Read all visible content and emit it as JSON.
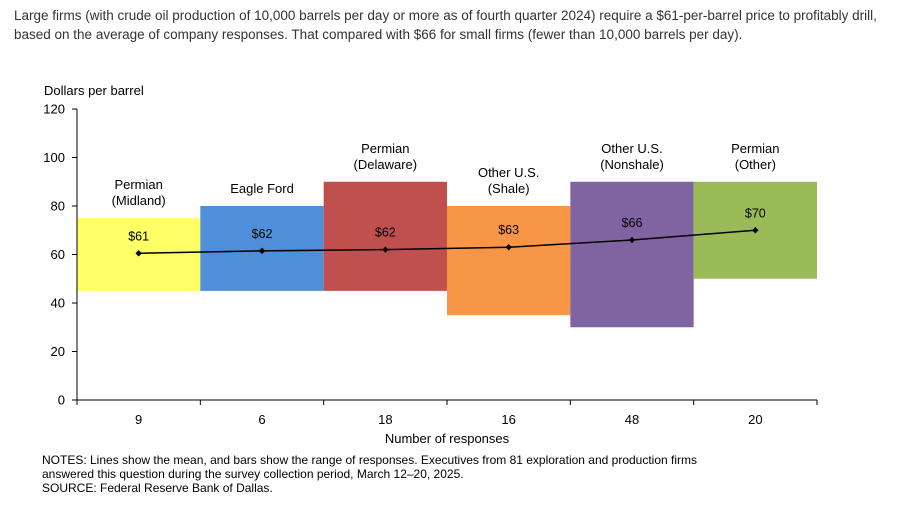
{
  "caption": "Large firms (with crude oil production of 10,000 barrels per day or more as of fourth quarter 2024) require a $61-per-barrel price to profitably drill, based on the average of company responses. That compared with $66 for small firms (fewer than 10,000 barrels per day).",
  "chart_data": {
    "type": "bar",
    "subtype": "floating-range-with-mean-line",
    "ylabel": "Dollars  per barrel",
    "xlabel": "Number  of responses",
    "ylim": [
      0,
      120
    ],
    "yticks": [
      0,
      20,
      40,
      60,
      80,
      100,
      120
    ],
    "grid": false,
    "categories": [
      {
        "name_lines": [
          "Permian",
          "(Midland)"
        ],
        "responses": "9",
        "low": 45,
        "high": 75,
        "mean": 60.5,
        "mean_label": "$61",
        "color": "#FFFF66"
      },
      {
        "name_lines": [
          "Eagle Ford"
        ],
        "responses": "6",
        "low": 45,
        "high": 80,
        "mean": 61.5,
        "mean_label": "$62",
        "color": "#4F8ED8"
      },
      {
        "name_lines": [
          "Permian",
          "(Delaware)"
        ],
        "responses": "18",
        "low": 45,
        "high": 90,
        "mean": 62,
        "mean_label": "$62",
        "color": "#C0504D"
      },
      {
        "name_lines": [
          "Other U.S.",
          "(Shale)"
        ],
        "responses": "16",
        "low": 35,
        "high": 80,
        "mean": 63,
        "mean_label": "$63",
        "color": "#F79646"
      },
      {
        "name_lines": [
          "Other U.S.",
          "(Nonshale)"
        ],
        "responses": "48",
        "low": 30,
        "high": 90,
        "mean": 66,
        "mean_label": "$66",
        "color": "#8064A2"
      },
      {
        "name_lines": [
          "Permian",
          "(Other)"
        ],
        "responses": "20",
        "low": 50,
        "high": 90,
        "mean": 70,
        "mean_label": "$70",
        "color": "#9BBB59"
      }
    ]
  },
  "notes": {
    "line1": "NOTES:  Lines show the mean, and bars show the range of responses. Executives from 81 exploration and production firms",
    "line2": "answered this question during the survey collection period, March 12–20, 2025.",
    "line3": "SOURCE:  Federal Reserve Bank of Dallas."
  }
}
